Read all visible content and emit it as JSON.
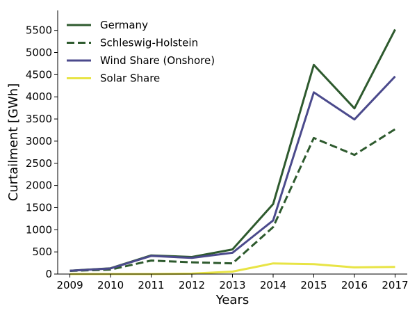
{
  "chart_data": {
    "type": "line",
    "title": "",
    "xlabel": "Years",
    "ylabel": "Curtailment [GWh]",
    "x": [
      2009,
      2010,
      2011,
      2012,
      2013,
      2014,
      2015,
      2016,
      2017
    ],
    "xlim": [
      2008.7,
      2017.3
    ],
    "ylim": [
      0,
      5950
    ],
    "yticks": [
      0,
      500,
      1000,
      1500,
      2000,
      2500,
      3000,
      3500,
      4000,
      4500,
      5000,
      5500
    ],
    "grid": false,
    "legend_position": "top-left",
    "series": [
      {
        "name": "Germany",
        "color": "#2e5a2e",
        "dash": "solid",
        "values": [
          75,
          130,
          420,
          385,
          555,
          1580,
          4720,
          3740,
          5520
        ]
      },
      {
        "name": "Schleswig-Holstein",
        "color": "#2e5a2e",
        "dash": "dashed",
        "values": [
          70,
          100,
          305,
          265,
          240,
          1060,
          3070,
          2690,
          3270
        ]
      },
      {
        "name": "Wind Share (Onshore)",
        "color": "#4b4a8c",
        "dash": "solid",
        "values": [
          75,
          125,
          410,
          365,
          480,
          1210,
          4100,
          3490,
          4460
        ]
      },
      {
        "name": "Solar Share",
        "color": "#e8e445",
        "dash": "solid",
        "values": [
          0,
          0,
          0,
          10,
          55,
          240,
          225,
          150,
          160
        ]
      }
    ]
  }
}
